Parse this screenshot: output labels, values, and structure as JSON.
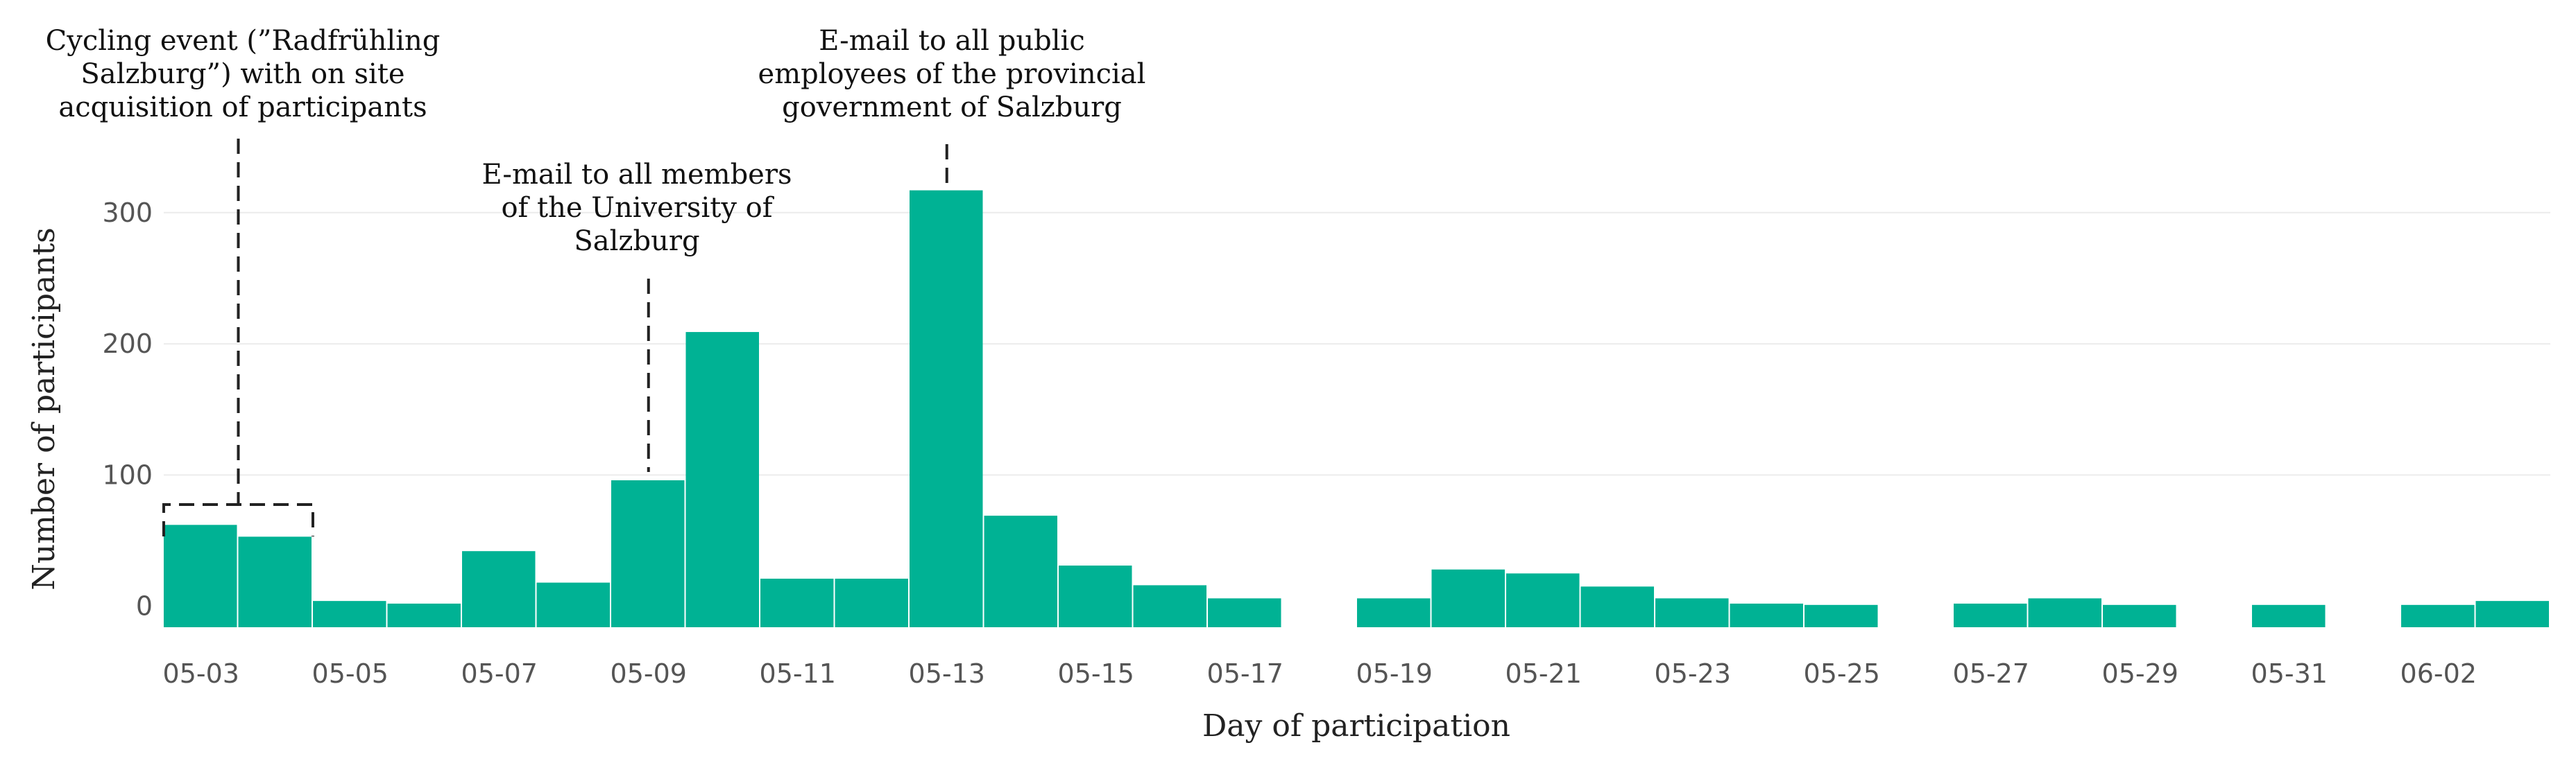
{
  "chart_data": {
    "type": "bar",
    "bar_color": "#00B294",
    "xlabel": "Day of participation",
    "ylabel": "Number of participants",
    "ylim": [
      -16,
      330
    ],
    "grid": true,
    "categories": [
      "05-03",
      "05-04",
      "05-05",
      "05-06",
      "05-07",
      "05-08",
      "05-09",
      "05-10",
      "05-11",
      "05-12",
      "05-13",
      "05-14",
      "05-15",
      "05-16",
      "05-17",
      "05-18",
      "05-19",
      "05-20",
      "05-21",
      "05-22",
      "05-23",
      "05-24",
      "05-25",
      "05-26",
      "05-27",
      "05-28",
      "05-29",
      "05-30",
      "05-31",
      "06-01",
      "06-02",
      "06-03"
    ],
    "values": [
      62,
      53,
      4,
      2,
      42,
      18,
      96,
      209,
      21,
      21,
      317,
      69,
      31,
      16,
      6,
      0,
      6,
      28,
      25,
      15,
      6,
      2,
      1,
      0,
      2,
      6,
      1,
      0,
      1,
      0,
      1,
      4
    ],
    "x_ticks": [
      "05-03",
      "05-05",
      "05-07",
      "05-09",
      "05-11",
      "05-13",
      "05-15",
      "05-17",
      "05-19",
      "05-21",
      "05-23",
      "05-25",
      "05-27",
      "05-29",
      "05-31",
      "06-02"
    ],
    "y_ticks": [
      0,
      100,
      200,
      300
    ],
    "annotations": [
      {
        "lines": [
          "Cycling event (”Radfrühling",
          "Salzburg”) with on site",
          "acquisition of participants"
        ],
        "target": [
          "05-03",
          "05-04"
        ]
      },
      {
        "lines": [
          "E-mail to all members",
          "of the University of",
          "Salzburg"
        ],
        "target": [
          "05-09"
        ]
      },
      {
        "lines": [
          "E-mail to all public",
          "employees of the provincial",
          "government of Salzburg"
        ],
        "target": [
          "05-13"
        ]
      }
    ]
  }
}
